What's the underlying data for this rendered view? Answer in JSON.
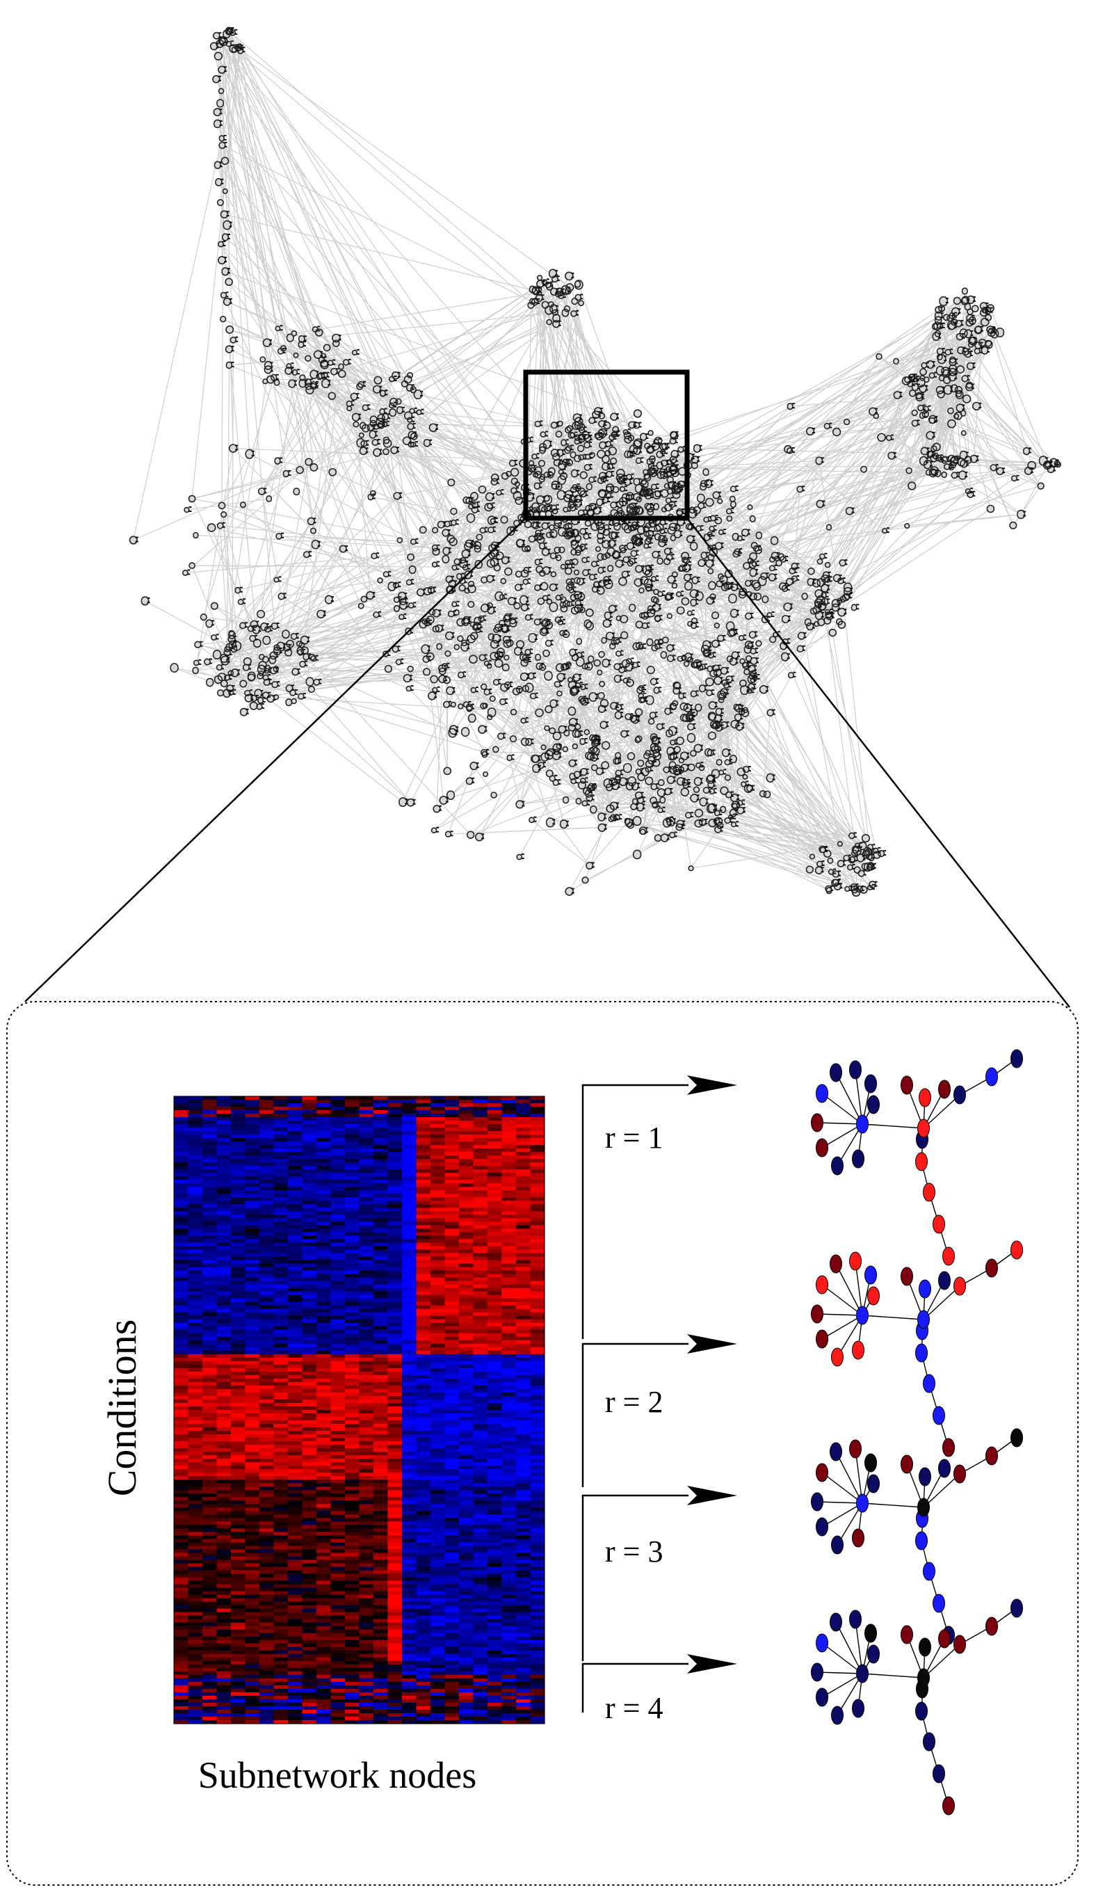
{
  "labels": {
    "conditions": "Conditions",
    "subnetwork_nodes": "Subnetwork nodes",
    "r1": "r = 1",
    "r2": "r = 2",
    "r3": "r = 3",
    "r4": "r = 4"
  },
  "colors": {
    "red": "#ff0000",
    "blue": "#0000ff",
    "dark_red": "#8b0000",
    "dark_blue": "#0a0a6e",
    "black": "#000000",
    "edge_gray": "#bdbdbd"
  },
  "subnetworks": [
    {
      "label": "r = 1",
      "node_colors": [
        "blue",
        "darkblue",
        "darkblue",
        "darkblue",
        "darkred",
        "darkred",
        "darkblue",
        "darkblue",
        "darkblue",
        "blue",
        "darkred",
        "red",
        "darkred",
        "darkblue",
        "red",
        "red",
        "red",
        "red",
        "red",
        "darkblue",
        "blue",
        "darkblue"
      ]
    },
    {
      "label": "r = 2",
      "node_colors": [
        "red",
        "darkred",
        "red",
        "blue",
        "darkred",
        "darkred",
        "red",
        "red",
        "red",
        "blue",
        "darkred",
        "blue",
        "darkblue",
        "blue",
        "blue",
        "blue",
        "blue",
        "blue",
        "darkred",
        "red",
        "darkred",
        "red"
      ]
    },
    {
      "label": "r = 3",
      "node_colors": [
        "darkred",
        "darkblue",
        "darkred",
        "black",
        "darkblue",
        "darkblue",
        "darkblue",
        "darkred",
        "darkblue",
        "blue",
        "darkred",
        "darkblue",
        "darkblue",
        "blue",
        "black",
        "blue",
        "blue",
        "blue",
        "darkblue",
        "darkred",
        "darkred",
        "black"
      ]
    },
    {
      "label": "r = 4",
      "node_colors": [
        "blue",
        "darkblue",
        "darkblue",
        "black",
        "darkblue",
        "darkblue",
        "darkblue",
        "darkblue",
        "darkblue",
        "darkblue",
        "darkred",
        "black",
        "darkred",
        "black",
        "black",
        "darkblue",
        "darkblue",
        "darkblue",
        "darkred",
        "darkred",
        "darkred",
        "darkblue"
      ]
    }
  ]
}
